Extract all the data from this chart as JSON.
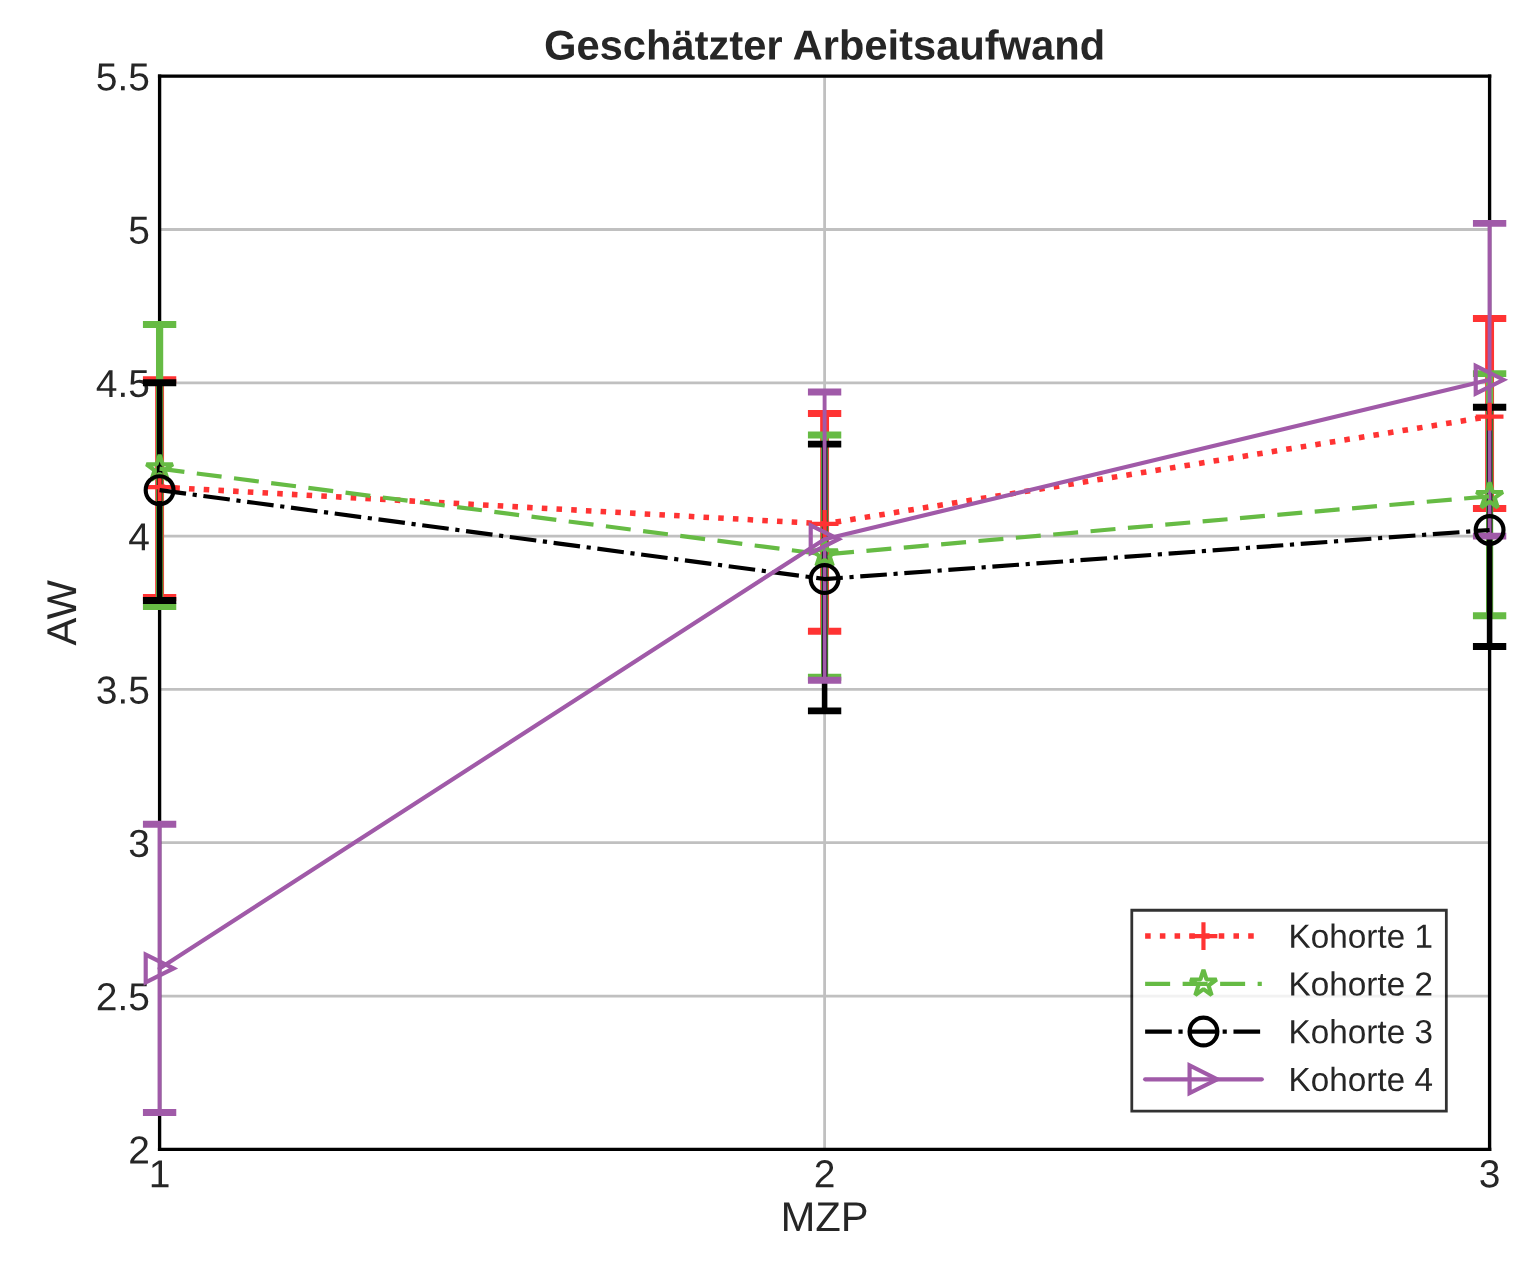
{
  "chart_data": {
    "type": "line",
    "title": "Geschätzter Arbeitsaufwand",
    "xlabel": "MZP",
    "ylabel": "AW",
    "x": [
      1,
      2,
      3
    ],
    "xlim": [
      1,
      3
    ],
    "xticks": [
      1,
      2,
      3
    ],
    "ylim": [
      2,
      5.5
    ],
    "yticks": [
      2,
      2.5,
      3,
      3.5,
      4,
      4.5,
      5,
      5.5
    ],
    "grid": true,
    "legend": "bottom right",
    "series": [
      {
        "name": "Kohorte 1",
        "color": "#ff3333",
        "marker": "cross",
        "line_style": "dotted",
        "values": [
          4.16,
          4.04,
          4.39
        ],
        "errors": [
          [
            3.8,
            4.51
          ],
          [
            3.69,
            4.4
          ],
          [
            4.09,
            4.71
          ]
        ]
      },
      {
        "name": "Kohorte 2",
        "color": "#66bb44",
        "marker": "star",
        "line_style": "dashed",
        "values": [
          4.22,
          3.94,
          4.13
        ],
        "errors": [
          [
            3.77,
            4.69
          ],
          [
            3.54,
            4.33
          ],
          [
            3.74,
            4.53
          ]
        ]
      },
      {
        "name": "Kohorte 3",
        "color": "#000000",
        "marker": "circle",
        "line_style": "dashdot",
        "values": [
          4.15,
          3.86,
          4.02
        ],
        "errors": [
          [
            3.79,
            4.5
          ],
          [
            3.43,
            4.3
          ],
          [
            3.64,
            4.42
          ]
        ]
      },
      {
        "name": "Kohorte 4",
        "color": "#a05aa8",
        "marker": "triangle",
        "line_style": "solid",
        "values": [
          2.59,
          3.99,
          4.51
        ],
        "errors": [
          [
            2.12,
            3.06
          ],
          [
            3.53,
            4.47
          ],
          [
            4.0,
            5.02
          ]
        ]
      }
    ]
  }
}
